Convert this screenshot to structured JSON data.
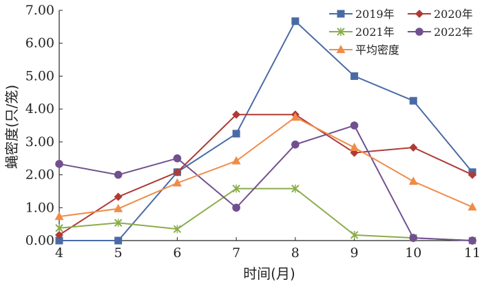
{
  "chart_data": {
    "type": "line",
    "title": "",
    "xlabel": "时间(月)",
    "ylabel": "蝇密度(只/笼)",
    "x": [
      4,
      5,
      6,
      7,
      8,
      9,
      10,
      11
    ],
    "x_tick_labels": [
      "4",
      "5",
      "6",
      "7",
      "8",
      "9",
      "10",
      "11"
    ],
    "ylim": [
      0,
      7
    ],
    "y_ticks": [
      0,
      1,
      2,
      3,
      4,
      5,
      6,
      7
    ],
    "y_tick_labels": [
      "0.00",
      "1.00",
      "2.00",
      "3.00",
      "4.00",
      "5.00",
      "6.00",
      "7.00"
    ],
    "grid": false,
    "legend_position": "top-right",
    "series": [
      {
        "name": "2019年",
        "color": "#4a6aa6",
        "marker": "square",
        "values": [
          0.0,
          0.0,
          2.08,
          3.25,
          6.67,
          5.0,
          4.25,
          2.08
        ]
      },
      {
        "name": "2020年",
        "color": "#b03a35",
        "marker": "diamond",
        "values": [
          0.17,
          1.33,
          2.08,
          3.83,
          3.83,
          2.67,
          2.83,
          2.0
        ]
      },
      {
        "name": "2021年",
        "color": "#8aac4a",
        "marker": "x",
        "values": [
          0.38,
          0.54,
          0.35,
          1.58,
          1.58,
          0.17,
          0.08,
          0.0
        ]
      },
      {
        "name": "2022年",
        "color": "#71508f",
        "marker": "circle",
        "values": [
          2.33,
          2.0,
          2.5,
          1.0,
          2.92,
          3.5,
          0.08,
          0.0
        ]
      },
      {
        "name": "平均密度",
        "color": "#ef8c47",
        "marker": "triangle",
        "values": [
          0.73,
          0.97,
          1.75,
          2.42,
          3.75,
          2.83,
          1.8,
          1.02
        ]
      }
    ]
  }
}
